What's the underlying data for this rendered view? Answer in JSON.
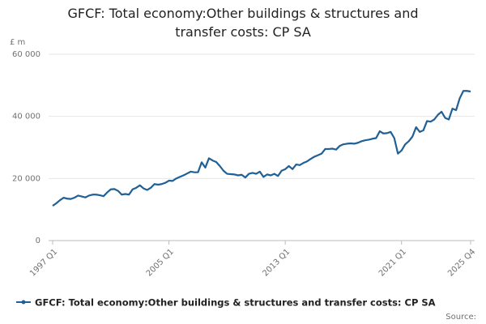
{
  "chart_data": {
    "type": "line",
    "title": "GFCF: Total economy:Other buildings & structures and transfer costs: CP SA",
    "y_label": "£ m",
    "source": "Source:",
    "categories": [
      "1997 Q1",
      null,
      null,
      null,
      null,
      null,
      null,
      null,
      null,
      null,
      null,
      null,
      null,
      null,
      null,
      null,
      null,
      null,
      null,
      null,
      null,
      null,
      null,
      null,
      null,
      null,
      null,
      null,
      null,
      null,
      null,
      null,
      "2005 Q1",
      null,
      null,
      null,
      null,
      null,
      null,
      null,
      null,
      null,
      null,
      null,
      null,
      null,
      null,
      null,
      null,
      null,
      null,
      null,
      null,
      null,
      null,
      null,
      null,
      null,
      null,
      null,
      null,
      null,
      null,
      null,
      "2013 Q1",
      null,
      null,
      null,
      null,
      null,
      null,
      null,
      null,
      null,
      null,
      null,
      null,
      null,
      null,
      null,
      null,
      null,
      null,
      null,
      null,
      null,
      null,
      null,
      null,
      null,
      null,
      null,
      null,
      null,
      null,
      null,
      "2021 Q1",
      null,
      null,
      null,
      null,
      null,
      null,
      null,
      null,
      null,
      null,
      null,
      null,
      null,
      null,
      null,
      null,
      null,
      null,
      "2025 Q4"
    ],
    "series": [
      {
        "name": "GFCF: Total economy:Other buildings & structures and transfer costs: CP SA",
        "color": "#206095",
        "values": [
          11200,
          12000,
          13000,
          13800,
          13500,
          13400,
          13800,
          14500,
          14200,
          13900,
          14500,
          14800,
          14800,
          14600,
          14300,
          15500,
          16500,
          16600,
          16000,
          14800,
          15000,
          14800,
          16500,
          17000,
          17800,
          16800,
          16300,
          17000,
          18200,
          18000,
          18200,
          18600,
          19300,
          19200,
          20000,
          20500,
          21000,
          21600,
          22200,
          22000,
          22000,
          25200,
          23500,
          26500,
          25800,
          25300,
          24000,
          22500,
          21500,
          21400,
          21300,
          21000,
          21200,
          20300,
          21500,
          21800,
          21500,
          22200,
          20500,
          21300,
          21000,
          21500,
          20800,
          22500,
          23000,
          24000,
          23000,
          24500,
          24300,
          25000,
          25500,
          26300,
          27000,
          27500,
          28000,
          29500,
          29500,
          29600,
          29300,
          30500,
          31000,
          31200,
          31300,
          31200,
          31500,
          32000,
          32300,
          32500,
          32800,
          33000,
          35200,
          34500,
          34600,
          35000,
          33000,
          28000,
          29000,
          31000,
          32000,
          33500,
          36500,
          35000,
          35500,
          38500,
          38300,
          39000,
          40500,
          41500,
          39500,
          39000,
          42500,
          42000,
          45800,
          48200,
          48200,
          48000
        ]
      }
    ],
    "ylim": [
      0,
      60000
    ],
    "yticks": [
      0,
      {
        "value": 20000,
        "label": "20 000"
      },
      {
        "value": 40000,
        "label": "40 000"
      },
      {
        "value": 60000,
        "label": "60 000"
      }
    ],
    "grid": true
  }
}
